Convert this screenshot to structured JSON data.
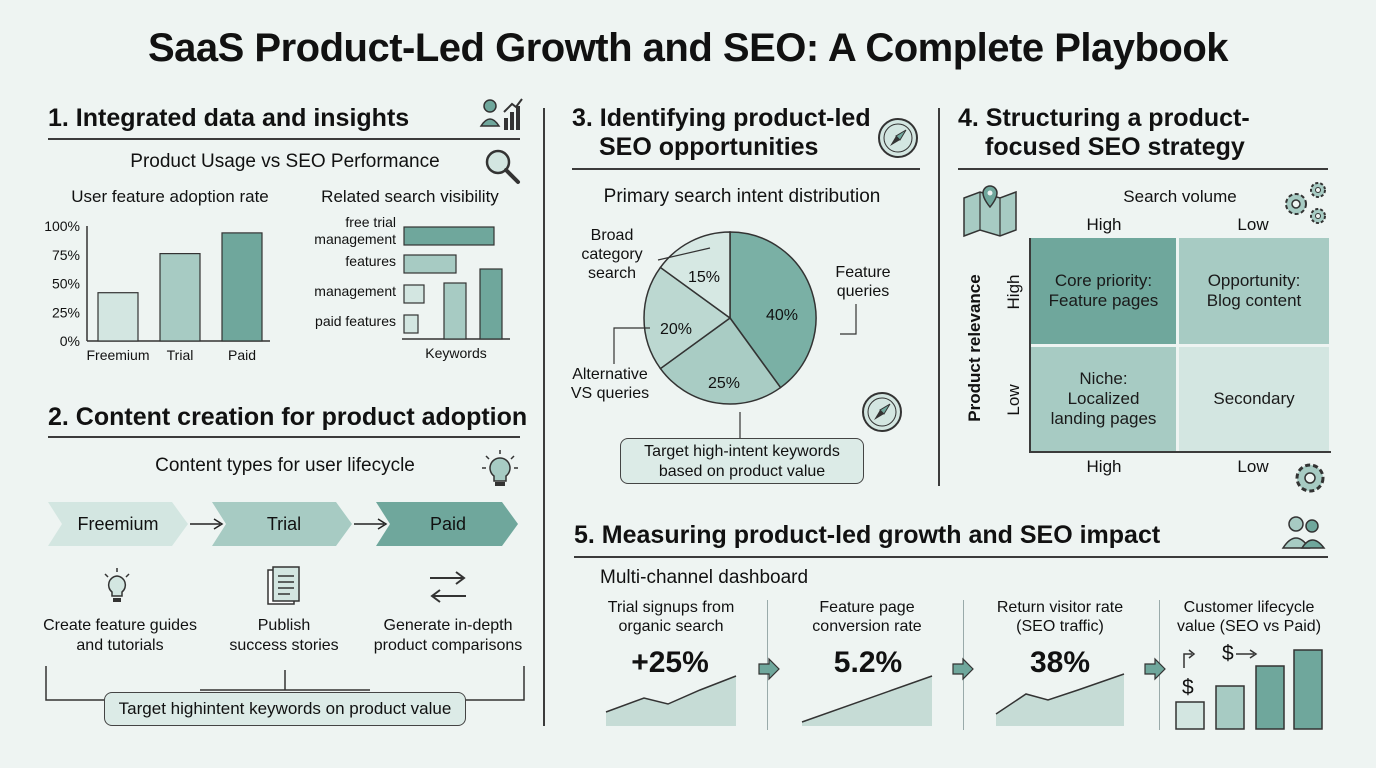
{
  "title": "SaaS Product-Led Growth and SEO: A Complete Playbook",
  "colors": {
    "dark": "#6fa79c",
    "mid": "#a7cbc3",
    "light": "#d3e6e1",
    "bg": "#eef4f2",
    "ink": "#3b3b3b"
  },
  "s1": {
    "heading": "1. Integrated data and insights",
    "subtitle": "Product Usage vs SEO Performance",
    "left_title": "User feature adoption rate",
    "right_title": "Related search visibility",
    "right_xlabel": "Keywords"
  },
  "chart_data": [
    {
      "type": "bar",
      "title": "User feature adoption rate",
      "categories": [
        "Freemium",
        "Trial",
        "Paid"
      ],
      "values": [
        42,
        76,
        94
      ],
      "yticks": [
        "100%",
        "75%",
        "50%",
        "25%",
        "0%"
      ],
      "ylim": [
        0,
        100
      ]
    },
    {
      "type": "bar",
      "title": "Related search visibility",
      "categories": [
        "free trial management",
        "features",
        "management",
        "paid features"
      ],
      "values": [
        90,
        52,
        20,
        14
      ],
      "xlabel": "Keywords",
      "vertical_values": [
        50,
        64
      ]
    },
    {
      "type": "pie",
      "title": "Primary search intent distribution",
      "slices": [
        {
          "label": "Feature queries",
          "value": 40,
          "text": "40%"
        },
        {
          "label": "",
          "value": 25,
          "text": "25%"
        },
        {
          "label": "Alternative VS queries",
          "value": 20,
          "text": "20%"
        },
        {
          "label": "Broad category search",
          "value": 15,
          "text": "15%"
        }
      ]
    }
  ],
  "s2": {
    "heading": "2. Content creation for product adoption",
    "subtitle": "Content types for user lifecycle",
    "stages": [
      "Freemium",
      "Trial",
      "Paid"
    ],
    "actions": [
      {
        "line1": "Create feature guides",
        "line2": "and tutorials"
      },
      {
        "line1": "Publish",
        "line2": "success stories"
      },
      {
        "line1": "Generate in-depth",
        "line2": "product comparisons"
      }
    ],
    "footer": "Target highintent keywords on product value"
  },
  "s3": {
    "heading_1": "3. Identifying product-led",
    "heading_2": "SEO opportunities",
    "subtitle": "Primary search intent distribution",
    "label_broad_1": "Broad",
    "label_broad_2": "category",
    "label_broad_3": "search",
    "label_feature_1": "Feature",
    "label_feature_2": "queries",
    "label_alt_1": "Alternative",
    "label_alt_2": "VS queries",
    "p15": "15%",
    "p20": "20%",
    "p25": "25%",
    "p40": "40%",
    "callout_1": "Target high-intent keywords",
    "callout_2": "based on product value"
  },
  "s4": {
    "heading_1": "4. Structuring a product-",
    "heading_2": "focused SEO strategy",
    "x_title": "Search volume",
    "x_high": "High",
    "x_low": "Low",
    "y_title": "Product relevance",
    "y_high": "High",
    "y_low": "Low",
    "q1_1": "Core priority:",
    "q1_2": "Feature pages",
    "q2_1": "Opportunity:",
    "q2_2": "Blog content",
    "q3_1": "Niche:",
    "q3_2": "Localized",
    "q3_3": "landing pages",
    "q4": "Secondary"
  },
  "s5": {
    "heading": "5. Measuring product-led growth and SEO impact",
    "subtitle": "Multi-channel dashboard",
    "metrics": [
      {
        "line1": "Trial signups from",
        "line2": "organic search",
        "value": "+25%"
      },
      {
        "line1": "Feature page",
        "line2": "conversion rate",
        "value": "5.2%"
      },
      {
        "line1": "Return visitor rate",
        "line2": "(SEO traffic)",
        "value": "38%"
      },
      {
        "line1": "Customer lifecycle",
        "line2": "value (SEO vs Paid)",
        "value": ""
      }
    ],
    "currency": "$"
  },
  "icons": [
    "users-chart-icon",
    "magnifier-icon",
    "compass-icon",
    "map-pin-icon",
    "gears-icon",
    "lightbulb-icon",
    "document-icon",
    "swap-arrows-icon",
    "users-icon"
  ]
}
